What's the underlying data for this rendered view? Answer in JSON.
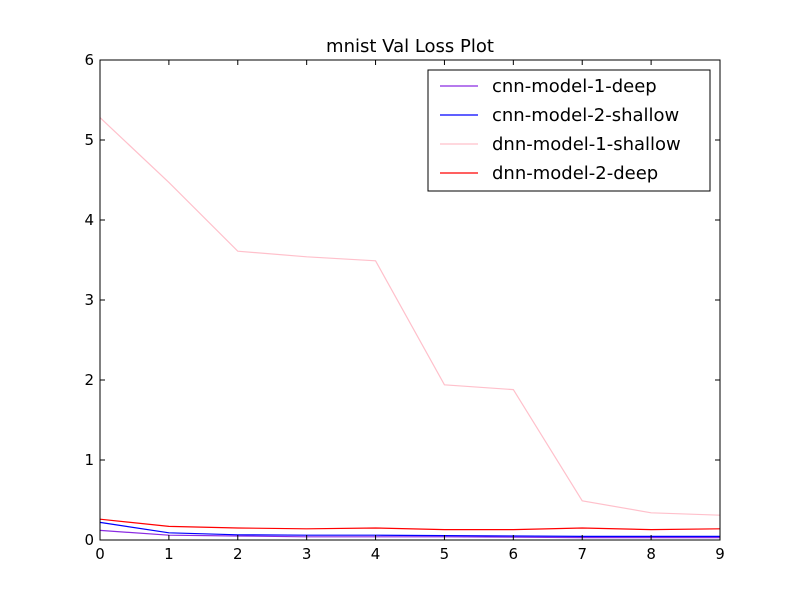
{
  "chart_data": {
    "type": "line",
    "title": "mnist Val Loss Plot",
    "xlabel": "",
    "ylabel": "",
    "xlim": [
      0,
      9
    ],
    "ylim": [
      0,
      6
    ],
    "x": [
      0,
      1,
      2,
      3,
      4,
      5,
      6,
      7,
      8,
      9
    ],
    "xticks": [
      "0",
      "1",
      "2",
      "3",
      "4",
      "5",
      "6",
      "7",
      "8",
      "9"
    ],
    "yticks": [
      "0",
      "1",
      "2",
      "3",
      "4",
      "5",
      "6"
    ],
    "grid": false,
    "legend_position": "top-right",
    "series": [
      {
        "name": "cnn-model-1-deep",
        "color": "#8a2be2",
        "values": [
          0.12,
          0.06,
          0.05,
          0.04,
          0.04,
          0.04,
          0.035,
          0.03,
          0.03,
          0.03
        ]
      },
      {
        "name": "cnn-model-2-shallow",
        "color": "#0000ff",
        "values": [
          0.22,
          0.09,
          0.065,
          0.06,
          0.06,
          0.055,
          0.05,
          0.045,
          0.045,
          0.045
        ]
      },
      {
        "name": "dnn-model-1-shallow",
        "color": "#ffc0cb",
        "values": [
          5.28,
          4.47,
          3.61,
          3.54,
          3.49,
          1.94,
          1.88,
          0.49,
          0.34,
          0.31
        ]
      },
      {
        "name": "dnn-model-2-deep",
        "color": "#ff0000",
        "values": [
          0.26,
          0.17,
          0.15,
          0.14,
          0.15,
          0.13,
          0.13,
          0.15,
          0.13,
          0.14
        ]
      }
    ]
  }
}
